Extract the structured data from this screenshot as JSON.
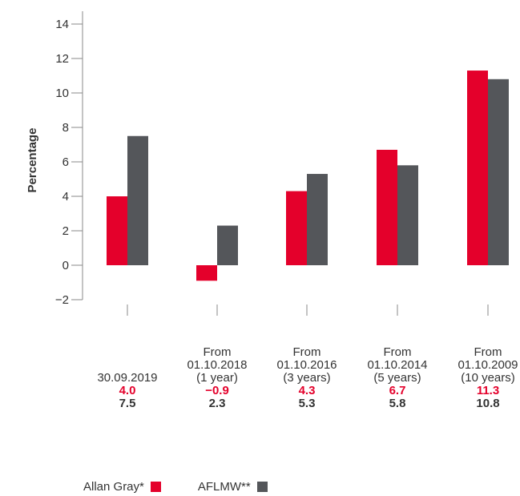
{
  "chart_data": {
    "type": "bar",
    "ylabel": "Percentage",
    "ylim": [
      -2,
      14
    ],
    "yticks": [
      "14",
      "12",
      "10",
      "8",
      "6",
      "4",
      "2",
      "0",
      "−2"
    ],
    "categories": [
      {
        "lines": [
          "",
          "",
          "30.09.2019"
        ],
        "label": "30.09.2019",
        "v1": "4.0",
        "v2": "7.5"
      },
      {
        "lines": [
          "From",
          "01.10.2018",
          "(1 year)"
        ],
        "label": "From 01.10.2018 (1 year)",
        "v1": "−0.9",
        "v2": "2.3"
      },
      {
        "lines": [
          "From",
          "01.10.2016",
          "(3 years)"
        ],
        "label": "From 01.10.2016 (3 years)",
        "v1": "4.3",
        "v2": "5.3"
      },
      {
        "lines": [
          "From",
          "01.10.2014",
          "(5 years)"
        ],
        "label": "From 01.10.2014 (5 years)",
        "v1": "6.7",
        "v2": "5.8"
      },
      {
        "lines": [
          "From",
          "01.10.2009",
          "(10 years)"
        ],
        "label": "From 01.10.2009 (10 years)",
        "v1": "11.3",
        "v2": "10.8"
      }
    ],
    "series": [
      {
        "name": "Allan Gray*",
        "color": "#e4002b",
        "values": [
          4.0,
          -0.9,
          4.3,
          6.7,
          11.3
        ]
      },
      {
        "name": "AFLMW**",
        "color": "#54565a",
        "values": [
          7.5,
          2.3,
          5.3,
          5.8,
          10.8
        ]
      }
    ],
    "grid": false,
    "legend_position": "bottom-left"
  }
}
